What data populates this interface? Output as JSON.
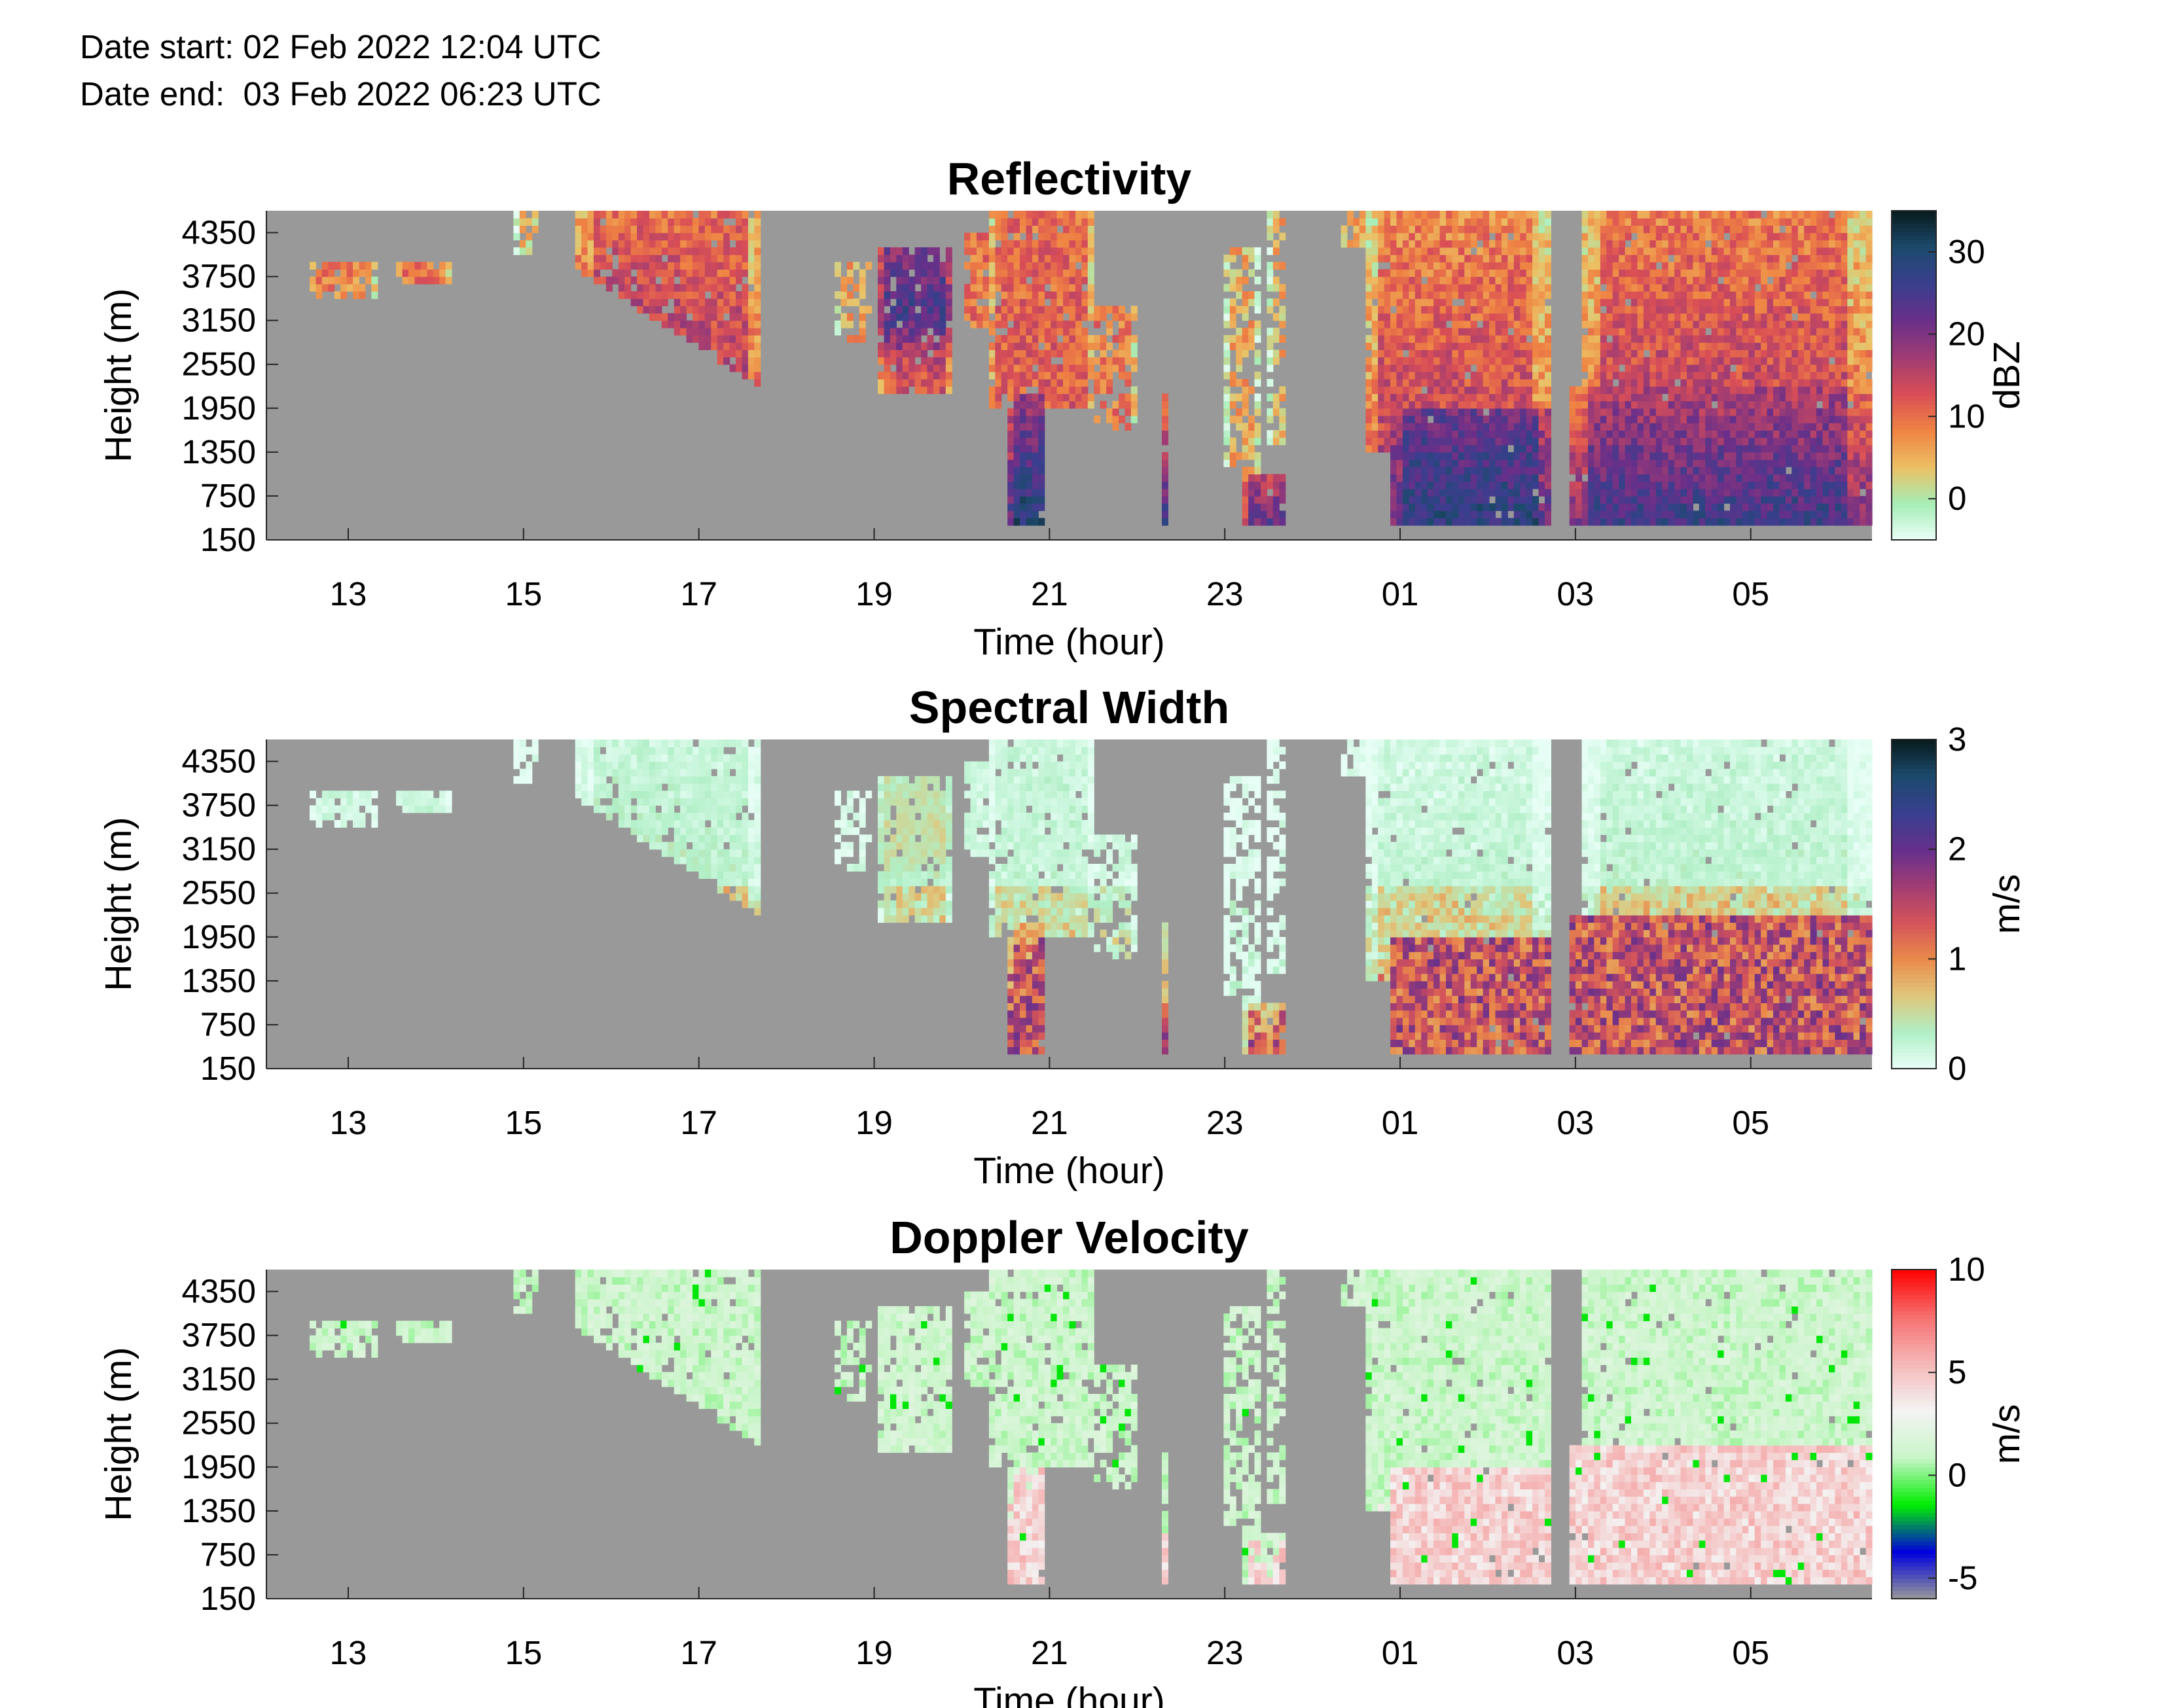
{
  "header": {
    "date_start": "Date start: 02 Feb 2022 12:04 UTC",
    "date_end": "Date end:  03 Feb 2022 06:23 UTC"
  },
  "colors": {
    "missing": "#999999",
    "axis": "#262626"
  },
  "chart_data": [
    {
      "type": "heatmap",
      "title": "Reflectivity",
      "xlabel": "Time (hour)",
      "ylabel": "Height (m)",
      "xticks": [
        "13",
        "15",
        "17",
        "19",
        "21",
        "23",
        "01",
        "03",
        "05"
      ],
      "yticks": [
        "150",
        "750",
        "1350",
        "1950",
        "2550",
        "3150",
        "3750",
        "4350"
      ],
      "xlim": [
        "02 Feb 2022 12:04",
        "03 Feb 2022 06:23"
      ],
      "ylim": [
        150,
        4650
      ],
      "colorbar": {
        "label": "dBZ",
        "ticks": [
          "0",
          "10",
          "20",
          "30"
        ],
        "range": [
          -5,
          35
        ],
        "colormap": [
          "#eafff8",
          "#a6edb6",
          "#ecc064",
          "#ef8343",
          "#d94e56",
          "#a03c73",
          "#6a2f89",
          "#3a3e8e",
          "#1d4a6e",
          "#081b1c"
        ]
      },
      "grid": false
    },
    {
      "type": "heatmap",
      "title": "Spectral Width",
      "xlabel": "Time (hour)",
      "ylabel": "Height (m)",
      "xticks": [
        "13",
        "15",
        "17",
        "19",
        "21",
        "23",
        "01",
        "03",
        "05"
      ],
      "yticks": [
        "150",
        "750",
        "1350",
        "1950",
        "2550",
        "3150",
        "3750",
        "4350"
      ],
      "xlim": [
        "02 Feb 2022 12:04",
        "03 Feb 2022 06:23"
      ],
      "ylim": [
        150,
        4650
      ],
      "colorbar": {
        "label": "m/s",
        "ticks": [
          "0",
          "1",
          "2",
          "3"
        ],
        "range": [
          0,
          3
        ],
        "colormap": [
          "#eafff8",
          "#b0efc6",
          "#dfc77c",
          "#ea8a4a",
          "#d4545a",
          "#a13d74",
          "#65308c",
          "#383f90",
          "#1c4a6d",
          "#081b1c"
        ]
      },
      "grid": false
    },
    {
      "type": "heatmap",
      "title": "Doppler Velocity",
      "xlabel": "Time (hour)",
      "ylabel": "Height (m)",
      "xticks": [
        "13",
        "15",
        "17",
        "19",
        "21",
        "23",
        "01",
        "03",
        "05"
      ],
      "yticks": [
        "150",
        "750",
        "1350",
        "1950",
        "2550",
        "3150",
        "3750",
        "4350"
      ],
      "xlim": [
        "02 Feb 2022 12:04",
        "03 Feb 2022 06:23"
      ],
      "ylim": [
        150,
        4650
      ],
      "colorbar": {
        "label": "m/s",
        "ticks": [
          "-5",
          "0",
          "5",
          "10"
        ],
        "range": [
          -6,
          10
        ],
        "colormap": [
          "#999999",
          "#0000dd",
          "#00ee00",
          "#c8f5c8",
          "#f4f4f4",
          "#f5b8b8",
          "#f77070",
          "#ff0000"
        ]
      },
      "grid": false
    }
  ]
}
